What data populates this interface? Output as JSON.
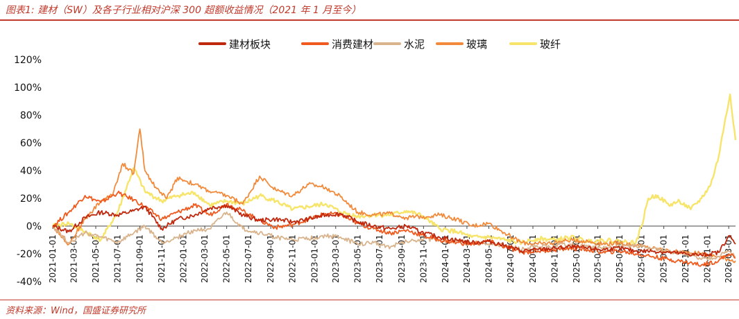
{
  "figure": {
    "title": "图表1:  建材（SW）及各子行业相对沪深 300 超额收益情况（2021 年 1 月至今）",
    "source": "资料来源：Wind，国盛证券研究所"
  },
  "chart_data": {
    "type": "line",
    "title": "",
    "xlabel": "",
    "ylabel": "",
    "y_unit": "%",
    "ylim": [
      -40,
      120
    ],
    "yticks": [
      -40,
      -20,
      0,
      20,
      40,
      60,
      80,
      100,
      120
    ],
    "ytick_labels": [
      "-40%",
      "-20%",
      "0%",
      "20%",
      "40%",
      "60%",
      "80%",
      "100%",
      "120%"
    ],
    "xlim": [
      "2021-01-01",
      "2026-03-20"
    ],
    "xtick_labels": [
      "2021-01-01",
      "2021-03-01",
      "2021-05-01",
      "2021-07-01",
      "2021-09-01",
      "2021-11-01",
      "2022-01-01",
      "2022-03-01",
      "2022-05-01",
      "2022-07-01",
      "2022-09-01",
      "2022-11-01",
      "2023-01-01",
      "2023-03-01",
      "2023-05-01",
      "2023-07-01",
      "2023-09-01",
      "2023-11-01",
      "2024-01-01",
      "2024-03-01",
      "2024-05-01",
      "2024-07-01",
      "2024-09-01",
      "2024-11-01",
      "2025-01-01",
      "2025-03-01",
      "2025-05-01",
      "2025-07-01",
      "2025-09-01",
      "2025-11-01",
      "2026-01-01",
      "2026-03-01"
    ],
    "grid": false,
    "legend_position": "top",
    "series": [
      {
        "name": "建材板块",
        "color": "#c0280e",
        "x": [
          "2021-01-01",
          "2021-02-15",
          "2021-04-01",
          "2021-05-15",
          "2021-07-01",
          "2021-08-15",
          "2021-09-15",
          "2021-11-01",
          "2021-12-15",
          "2022-02-01",
          "2022-03-15",
          "2022-05-01",
          "2022-06-15",
          "2022-08-01",
          "2022-09-15",
          "2022-11-01",
          "2022-12-15",
          "2023-02-01",
          "2023-03-15",
          "2023-05-01",
          "2023-06-15",
          "2023-08-01",
          "2023-09-15",
          "2023-11-01",
          "2023-12-15",
          "2024-02-01",
          "2024-03-15",
          "2024-05-01",
          "2024-06-15",
          "2024-08-01",
          "2024-09-15",
          "2024-11-01",
          "2024-12-15",
          "2025-02-01",
          "2025-03-15",
          "2025-05-01",
          "2025-06-15",
          "2025-08-01",
          "2025-09-15",
          "2025-11-01",
          "2025-12-15",
          "2026-02-01",
          "2026-03-01",
          "2026-03-20"
        ],
        "values": [
          0,
          -4,
          6,
          10,
          8,
          11,
          14,
          -2,
          5,
          8,
          13,
          15,
          8,
          4,
          5,
          3,
          5,
          8,
          9,
          3,
          0,
          -2,
          0,
          -5,
          -8,
          -10,
          -12,
          -11,
          -14,
          -18,
          -17,
          -16,
          -15,
          -16,
          -17,
          -16,
          -18,
          -18,
          -19,
          -20,
          -21,
          -19,
          -7,
          -13
        ]
      },
      {
        "name": "消费建材",
        "color": "#f05a1e",
        "x": [
          "2021-01-01",
          "2021-02-15",
          "2021-04-01",
          "2021-05-15",
          "2021-07-01",
          "2021-08-15",
          "2021-09-15",
          "2021-11-01",
          "2021-12-15",
          "2022-02-01",
          "2022-03-15",
          "2022-05-01",
          "2022-06-15",
          "2022-08-01",
          "2022-09-15",
          "2022-11-01",
          "2022-12-15",
          "2023-02-01",
          "2023-03-15",
          "2023-05-01",
          "2023-06-15",
          "2023-08-01",
          "2023-09-15",
          "2023-11-01",
          "2023-12-15",
          "2024-02-01",
          "2024-03-15",
          "2024-05-01",
          "2024-06-15",
          "2024-08-01",
          "2024-09-15",
          "2024-11-01",
          "2024-12-15",
          "2025-02-01",
          "2025-03-15",
          "2025-05-01",
          "2025-06-15",
          "2025-08-01",
          "2025-09-15",
          "2025-11-01",
          "2025-12-15",
          "2026-02-01",
          "2026-03-01",
          "2026-03-20"
        ],
        "values": [
          0,
          10,
          22,
          17,
          24,
          19,
          14,
          5,
          10,
          15,
          8,
          16,
          11,
          4,
          -1,
          1,
          5,
          9,
          8,
          2,
          -2,
          -5,
          -3,
          -7,
          -10,
          -12,
          -13,
          -11,
          -15,
          -19,
          -18,
          -17,
          -16,
          -17,
          -19,
          -18,
          -20,
          -22,
          -24,
          -26,
          -28,
          -25,
          -20,
          -23
        ]
      },
      {
        "name": "水泥",
        "color": "#d9b38c",
        "x": [
          "2021-01-01",
          "2021-02-15",
          "2021-04-01",
          "2021-05-15",
          "2021-07-01",
          "2021-08-15",
          "2021-09-15",
          "2021-11-01",
          "2021-12-15",
          "2022-02-01",
          "2022-03-15",
          "2022-05-01",
          "2022-06-15",
          "2022-08-01",
          "2022-09-15",
          "2022-11-01",
          "2022-12-15",
          "2023-02-01",
          "2023-03-15",
          "2023-05-01",
          "2023-06-15",
          "2023-08-01",
          "2023-09-15",
          "2023-11-01",
          "2023-12-15",
          "2024-02-01",
          "2024-03-15",
          "2024-05-01",
          "2024-06-15",
          "2024-08-01",
          "2024-09-15",
          "2024-11-01",
          "2024-12-15",
          "2025-02-01",
          "2025-03-15",
          "2025-05-01",
          "2025-06-15",
          "2025-08-01",
          "2025-09-15",
          "2025-11-01",
          "2025-12-15",
          "2026-02-01",
          "2026-03-01",
          "2026-03-20"
        ],
        "values": [
          0,
          -12,
          -5,
          -8,
          -12,
          -5,
          0,
          -12,
          -8,
          -3,
          -2,
          10,
          -2,
          -5,
          -8,
          -10,
          -9,
          -7,
          -8,
          -13,
          -12,
          -15,
          -11,
          -9,
          -10,
          -11,
          -12,
          -13,
          -14,
          -17,
          -15,
          -14,
          -13,
          -15,
          -16,
          -15,
          -14,
          -16,
          -18,
          -20,
          -24,
          -22,
          -18,
          -22
        ]
      },
      {
        "name": "玻璃",
        "color": "#f28a3c",
        "x": [
          "2021-01-01",
          "2021-02-15",
          "2021-04-01",
          "2021-05-15",
          "2021-06-15",
          "2021-07-15",
          "2021-08-15",
          "2021-09-01",
          "2021-09-15",
          "2021-10-15",
          "2021-11-15",
          "2021-12-15",
          "2022-02-01",
          "2022-03-15",
          "2022-05-01",
          "2022-06-15",
          "2022-08-01",
          "2022-09-15",
          "2022-11-01",
          "2022-12-15",
          "2023-02-01",
          "2023-03-15",
          "2023-05-01",
          "2023-06-15",
          "2023-08-01",
          "2023-09-15",
          "2023-11-01",
          "2023-12-15",
          "2024-02-01",
          "2024-03-15",
          "2024-05-01",
          "2024-06-15",
          "2024-08-01",
          "2024-09-15",
          "2024-11-01",
          "2024-12-15",
          "2025-02-01",
          "2025-03-15",
          "2025-05-01",
          "2025-06-15",
          "2025-08-01",
          "2025-09-15",
          "2025-11-01",
          "2025-12-15",
          "2026-02-01",
          "2026-03-01",
          "2026-03-20"
        ],
        "values": [
          0,
          -13,
          5,
          18,
          22,
          45,
          38,
          70,
          40,
          28,
          20,
          35,
          30,
          25,
          22,
          16,
          36,
          26,
          22,
          30,
          28,
          21,
          10,
          8,
          9,
          6,
          7,
          8,
          5,
          0,
          2,
          -5,
          -12,
          -13,
          -12,
          -10,
          -11,
          -13,
          -12,
          -14,
          -16,
          -18,
          -19,
          -20,
          -22,
          -24,
          -25
        ]
      },
      {
        "name": "玻纤",
        "color": "#f7e46a",
        "x": [
          "2021-01-01",
          "2021-02-15",
          "2021-04-01",
          "2021-05-15",
          "2021-07-01",
          "2021-08-15",
          "2021-09-15",
          "2021-11-01",
          "2021-12-15",
          "2022-02-01",
          "2022-03-15",
          "2022-05-01",
          "2022-06-15",
          "2022-08-01",
          "2022-09-15",
          "2022-11-01",
          "2022-12-15",
          "2023-02-01",
          "2023-03-15",
          "2023-05-01",
          "2023-06-15",
          "2023-08-01",
          "2023-09-15",
          "2023-11-01",
          "2023-12-15",
          "2024-02-01",
          "2024-03-15",
          "2024-05-01",
          "2024-06-15",
          "2024-08-01",
          "2024-09-15",
          "2024-11-01",
          "2024-12-15",
          "2025-02-01",
          "2025-03-15",
          "2025-05-01",
          "2025-06-15",
          "2025-07-01",
          "2025-07-20",
          "2025-08-15",
          "2025-09-15",
          "2025-10-15",
          "2025-11-15",
          "2025-12-15",
          "2026-01-10",
          "2026-02-01",
          "2026-02-20",
          "2026-03-05",
          "2026-03-20"
        ],
        "values": [
          0,
          2,
          -4,
          -10,
          10,
          42,
          25,
          18,
          22,
          24,
          15,
          18,
          16,
          22,
          18,
          12,
          14,
          16,
          10,
          7,
          8,
          8,
          11,
          7,
          -2,
          -4,
          -8,
          -8,
          -10,
          -12,
          -9,
          -10,
          -8,
          -11,
          -10,
          -11,
          -12,
          0,
          20,
          22,
          15,
          18,
          12,
          20,
          30,
          50,
          78,
          95,
          62
        ]
      }
    ]
  }
}
